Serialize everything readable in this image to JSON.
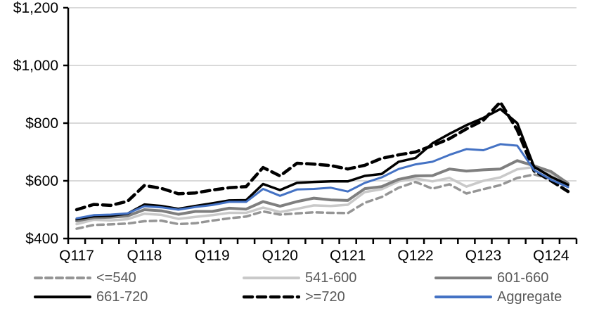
{
  "chart_data": {
    "type": "line",
    "title": "",
    "xlabel": "",
    "ylabel": "",
    "ylim": [
      400,
      1200
    ],
    "y_ticks": [
      {
        "value": 400,
        "label": "$400"
      },
      {
        "value": 600,
        "label": "$600"
      },
      {
        "value": 800,
        "label": "$800"
      },
      {
        "value": 1000,
        "label": "$1,000"
      },
      {
        "value": 1200,
        "label": "$1,200"
      }
    ],
    "x_year_labels": [
      "Q117",
      "Q118",
      "Q119",
      "Q120",
      "Q121",
      "Q122",
      "Q123",
      "Q124"
    ],
    "categories": [
      "Q117",
      "Q217",
      "Q317",
      "Q417",
      "Q118",
      "Q218",
      "Q318",
      "Q418",
      "Q119",
      "Q219",
      "Q319",
      "Q419",
      "Q120",
      "Q220",
      "Q320",
      "Q420",
      "Q121",
      "Q221",
      "Q321",
      "Q421",
      "Q122",
      "Q222",
      "Q322",
      "Q422",
      "Q123",
      "Q223",
      "Q323",
      "Q423",
      "Q124",
      "Q224"
    ],
    "grid": "horizontal",
    "gridline_color": "#d9d9d9",
    "axis_color": "#000000",
    "axis_label_color": "#000000",
    "legend_position": "bottom",
    "legend_text_color": "#595959",
    "series": [
      {
        "name": "<=540",
        "color": "#959595",
        "dash": "9 6",
        "width": 3.5,
        "values": [
          434,
          447,
          449,
          452,
          460,
          462,
          450,
          453,
          462,
          470,
          476,
          494,
          483,
          487,
          491,
          489,
          488,
          524,
          544,
          576,
          596,
          573,
          588,
          556,
          571,
          585,
          610,
          622,
          606,
          583
        ]
      },
      {
        "name": "541-600",
        "color": "#c9c9c9",
        "dash": null,
        "width": 3.5,
        "values": [
          450,
          465,
          463,
          467,
          486,
          482,
          468,
          475,
          481,
          489,
          489,
          507,
          492,
          503,
          515,
          513,
          517,
          561,
          571,
          598,
          608,
          598,
          610,
          580,
          600,
          612,
          640,
          648,
          625,
          586
        ]
      },
      {
        "name": "601-660",
        "color": "#7f7f7f",
        "dash": null,
        "width": 4,
        "values": [
          461,
          472,
          474,
          478,
          500,
          496,
          484,
          494,
          494,
          505,
          502,
          528,
          512,
          528,
          540,
          534,
          532,
          573,
          580,
          605,
          617,
          618,
          641,
          634,
          638,
          641,
          670,
          652,
          632,
          591
        ]
      },
      {
        "name": "661-720",
        "color": "#000000",
        "dash": null,
        "width": 3.5,
        "values": [
          467,
          477,
          479,
          486,
          518,
          513,
          503,
          513,
          522,
          532,
          533,
          589,
          568,
          593,
          596,
          598,
          598,
          617,
          624,
          666,
          679,
          730,
          763,
          793,
          818,
          849,
          800,
          648,
          614,
          586
        ]
      },
      {
        "name": ">=720",
        "color": "#000000",
        "dash": "12 7",
        "width": 4.5,
        "values": [
          500,
          518,
          515,
          529,
          584,
          574,
          555,
          558,
          568,
          576,
          580,
          646,
          617,
          661,
          658,
          653,
          641,
          654,
          678,
          690,
          700,
          722,
          746,
          780,
          810,
          873,
          776,
          634,
          600,
          563
        ]
      },
      {
        "name": "Aggregate",
        "color": "#4472c4",
        "dash": null,
        "width": 3,
        "values": [
          470,
          481,
          483,
          487,
          512,
          508,
          500,
          509,
          516,
          527,
          527,
          572,
          548,
          570,
          572,
          576,
          563,
          593,
          612,
          641,
          657,
          666,
          690,
          710,
          706,
          727,
          722,
          637,
          604,
          578
        ]
      }
    ]
  }
}
